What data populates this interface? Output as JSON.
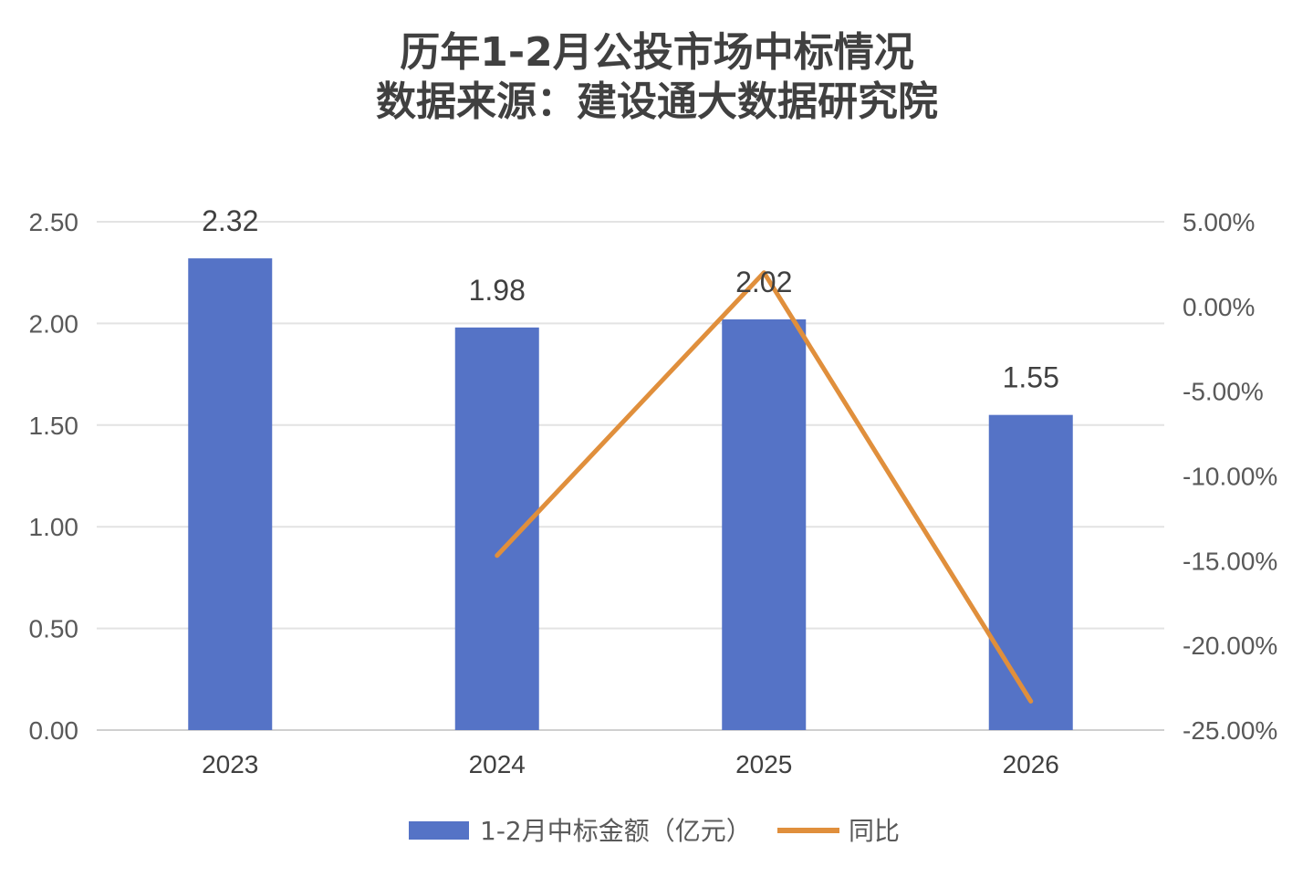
{
  "chart_data": {
    "type": "bar",
    "title": "历年1-2月公投市场中标情况",
    "subtitle": "数据来源：建设通大数据研究院",
    "categories": [
      "2023",
      "2024",
      "2025",
      "2026"
    ],
    "series": [
      {
        "name": "1-2月中标金额（亿元）",
        "type": "bar",
        "axis": "left",
        "color": "#5573c6",
        "values": [
          2.32,
          1.98,
          2.02,
          1.55
        ],
        "data_labels": [
          "2.32",
          "1.98",
          "2.02",
          "1.55"
        ]
      },
      {
        "name": "同比",
        "type": "line",
        "axis": "right",
        "color": "#e08f3c",
        "values": [
          null,
          -14.7,
          2.0,
          -23.3
        ]
      }
    ],
    "y_left": {
      "ylim": [
        0,
        2.5
      ],
      "ticks": [
        0,
        0.5,
        1.0,
        1.5,
        2.0,
        2.5
      ],
      "tick_labels": [
        "0.00",
        "0.50",
        "1.00",
        "1.50",
        "2.00",
        "2.50"
      ]
    },
    "y_right": {
      "ylim": [
        -25,
        5
      ],
      "ticks": [
        -25,
        -20,
        -15,
        -10,
        -5,
        0,
        5
      ],
      "tick_labels": [
        "-25.00%",
        "-20.00%",
        "-15.00%",
        "-10.00%",
        "-5.00%",
        "0.00%",
        "5.00%"
      ]
    },
    "grid": true,
    "legend_position": "bottom"
  }
}
